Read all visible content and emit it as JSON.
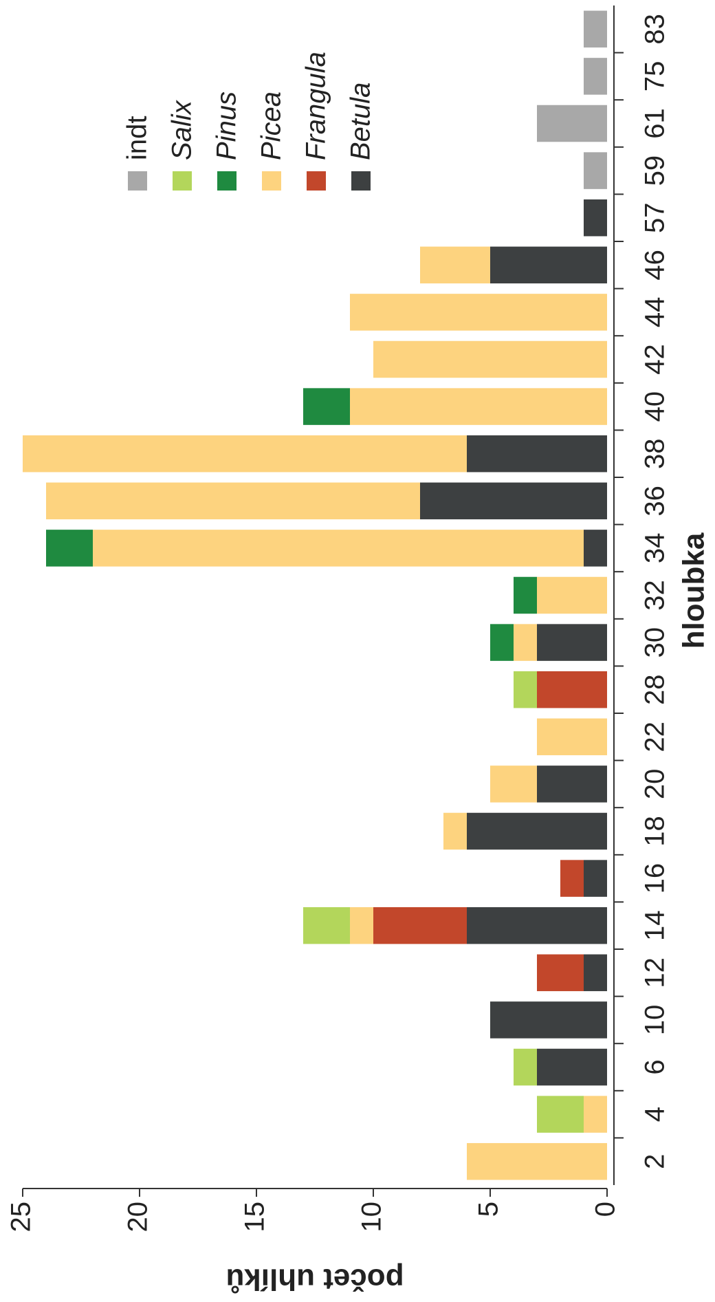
{
  "chart_data": {
    "type": "stacked_bar",
    "xlabel": "hloubka",
    "ylabel": "počet uhlíků",
    "categories": [
      "2",
      "4",
      "6",
      "10",
      "12",
      "14",
      "16",
      "18",
      "20",
      "22",
      "28",
      "30",
      "32",
      "34",
      "36",
      "38",
      "40",
      "42",
      "44",
      "46",
      "57",
      "59",
      "61",
      "75",
      "83"
    ],
    "series": [
      {
        "name": "Betula",
        "color": "#3d4041",
        "values": [
          0,
          0,
          3,
          5,
          1,
          6,
          1,
          6,
          3,
          0,
          0,
          3,
          0,
          1,
          8,
          6,
          0,
          0,
          0,
          5,
          1,
          0,
          0,
          0,
          0
        ]
      },
      {
        "name": "Frangula",
        "color": "#c2472b",
        "values": [
          0,
          0,
          0,
          0,
          2,
          4,
          1,
          0,
          0,
          0,
          3,
          0,
          0,
          0,
          0,
          0,
          0,
          0,
          0,
          0,
          0,
          0,
          0,
          0,
          0
        ]
      },
      {
        "name": "Picea",
        "color": "#fdd37f",
        "values": [
          6,
          1,
          0,
          0,
          0,
          1,
          0,
          1,
          2,
          3,
          0,
          1,
          3,
          21,
          16,
          19,
          11,
          10,
          11,
          3,
          0,
          0,
          0,
          0,
          0
        ]
      },
      {
        "name": "Pinus",
        "color": "#1f8a40",
        "values": [
          0,
          0,
          0,
          0,
          0,
          0,
          0,
          0,
          0,
          0,
          0,
          1,
          1,
          2,
          0,
          0,
          2,
          0,
          0,
          0,
          0,
          0,
          0,
          0,
          0
        ]
      },
      {
        "name": "Salix",
        "color": "#b3d65b",
        "values": [
          0,
          2,
          1,
          0,
          0,
          2,
          0,
          0,
          0,
          0,
          1,
          0,
          0,
          0,
          0,
          0,
          0,
          0,
          0,
          0,
          0,
          0,
          0,
          0,
          0
        ]
      },
      {
        "name": "indt",
        "color": "#a8a8a8",
        "values": [
          0,
          0,
          0,
          0,
          0,
          0,
          0,
          0,
          0,
          0,
          0,
          0,
          0,
          0,
          0,
          0,
          0,
          0,
          0,
          0,
          0,
          1,
          3,
          1,
          1
        ]
      }
    ],
    "ylim": [
      0,
      25
    ],
    "yticks": [
      0,
      5,
      10,
      15,
      20,
      25
    ],
    "grid": false
  }
}
